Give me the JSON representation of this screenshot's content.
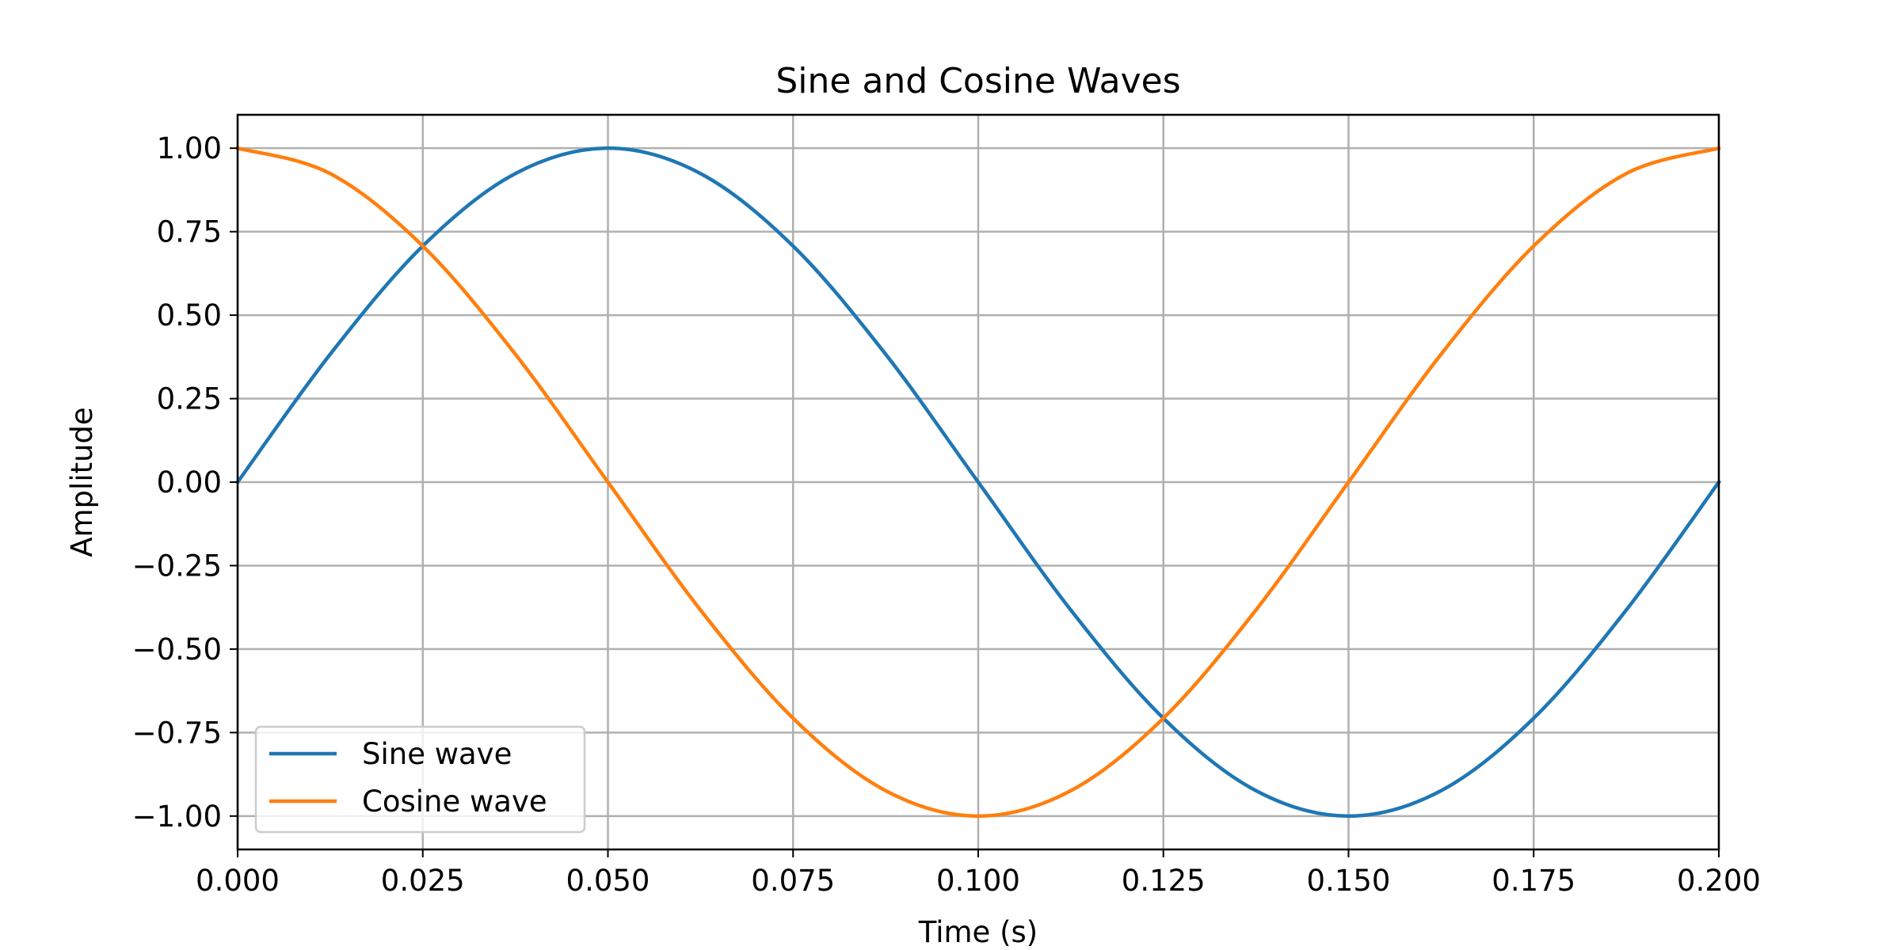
{
  "chart_data": {
    "type": "line",
    "title": "Sine and Cosine Waves",
    "xlabel": "Time (s)",
    "ylabel": "Amplitude",
    "xlim": [
      0,
      0.2
    ],
    "ylim": [
      -1.1,
      1.1
    ],
    "grid": true,
    "legend_position": "lower-left",
    "x_ticks": [
      "0.000",
      "0.025",
      "0.050",
      "0.075",
      "0.100",
      "0.125",
      "0.150",
      "0.175",
      "0.200"
    ],
    "x_tick_values": [
      0,
      0.025,
      0.05,
      0.075,
      0.1,
      0.125,
      0.15,
      0.175,
      0.2
    ],
    "y_ticks": [
      "1.00",
      "0.75",
      "0.50",
      "0.25",
      "0.00",
      "−0.25",
      "−0.50",
      "−0.75",
      "−1.00"
    ],
    "y_tick_values": [
      1,
      0.75,
      0.5,
      0.25,
      0,
      -0.25,
      -0.5,
      -0.75,
      -1
    ],
    "x": [
      0,
      0.0125,
      0.025,
      0.0375,
      0.05,
      0.0625,
      0.075,
      0.0875,
      0.1,
      0.1125,
      0.125,
      0.1375,
      0.15,
      0.1625,
      0.175,
      0.1875,
      0.2
    ],
    "series": [
      {
        "name": "Sine wave",
        "color": "#1f77b4",
        "values": [
          0,
          0.383,
          0.707,
          0.924,
          1,
          0.924,
          0.707,
          0.383,
          0,
          -0.383,
          -0.707,
          -0.924,
          -1,
          -0.924,
          -0.707,
          -0.383,
          0
        ]
      },
      {
        "name": "Cosine wave",
        "color": "#ff7f0e",
        "values": [
          1,
          0.924,
          0.707,
          0.383,
          0,
          -0.383,
          -0.707,
          -0.924,
          -1,
          -0.924,
          -0.707,
          -0.383,
          0,
          0.383,
          0.707,
          0.924,
          1
        ]
      }
    ]
  }
}
